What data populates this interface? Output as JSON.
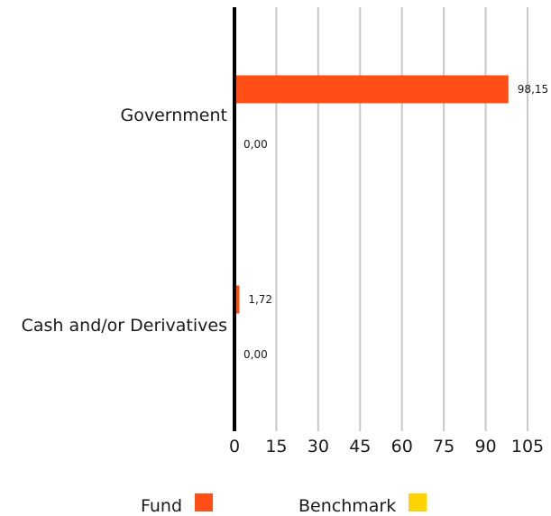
{
  "chart_data": {
    "type": "bar",
    "orientation": "horizontal",
    "categories": [
      "Government",
      "Cash and/or Derivatives"
    ],
    "series": [
      {
        "name": "Fund",
        "values": [
          98.15,
          1.72
        ],
        "value_labels": [
          "98,15",
          "1,72"
        ],
        "color": "#ff4f17"
      },
      {
        "name": "Benchmark",
        "values": [
          0.0,
          0.0
        ],
        "value_labels": [
          "0,00",
          "0,00"
        ],
        "color": "#ffd200"
      }
    ],
    "xlim": [
      0,
      105
    ],
    "x_ticks": [
      0,
      15,
      30,
      45,
      60,
      75,
      90,
      105
    ],
    "x_tick_labels": [
      "0",
      "15",
      "30",
      "45",
      "60",
      "75",
      "90",
      "105"
    ],
    "grid": true,
    "legend_position": "bottom"
  }
}
